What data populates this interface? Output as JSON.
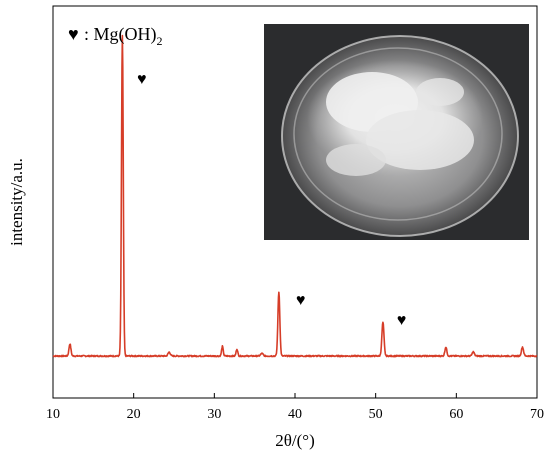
{
  "chart_data": {
    "type": "line",
    "xlabel": "2θ/(°)",
    "ylabel": "intensity/a.u.",
    "xlim": [
      10,
      70
    ],
    "xticks": [
      "10",
      "20",
      "30",
      "40",
      "50",
      "60",
      "70"
    ],
    "yticks_labeled": false,
    "grid": false,
    "legend": {
      "symbol": "♥",
      "text": ": Mg(OH)",
      "subscript": "2",
      "placement": "top-left"
    },
    "peak_markers": [
      {
        "symbol": "♥",
        "x": 21.0
      },
      {
        "symbol": "♥",
        "x": 40.7
      },
      {
        "symbol": "♥",
        "x": 53.2
      }
    ],
    "inset_image": {
      "description": "photo of white powder in a glass petri dish",
      "placement": "top-right"
    },
    "line_color": "#d63d28",
    "baseline": 0.045,
    "noise": 0.004,
    "peaks": [
      {
        "x": 12.1,
        "h": 0.038,
        "w": 0.12
      },
      {
        "x": 18.6,
        "h": 1.0,
        "w": 0.11
      },
      {
        "x": 24.4,
        "h": 0.012,
        "w": 0.14
      },
      {
        "x": 31.0,
        "h": 0.03,
        "w": 0.1
      },
      {
        "x": 32.8,
        "h": 0.022,
        "w": 0.1
      },
      {
        "x": 35.9,
        "h": 0.008,
        "w": 0.15
      },
      {
        "x": 38.0,
        "h": 0.2,
        "w": 0.12
      },
      {
        "x": 50.9,
        "h": 0.105,
        "w": 0.13
      },
      {
        "x": 58.7,
        "h": 0.028,
        "w": 0.12
      },
      {
        "x": 62.1,
        "h": 0.013,
        "w": 0.13
      },
      {
        "x": 68.2,
        "h": 0.028,
        "w": 0.13
      }
    ]
  }
}
